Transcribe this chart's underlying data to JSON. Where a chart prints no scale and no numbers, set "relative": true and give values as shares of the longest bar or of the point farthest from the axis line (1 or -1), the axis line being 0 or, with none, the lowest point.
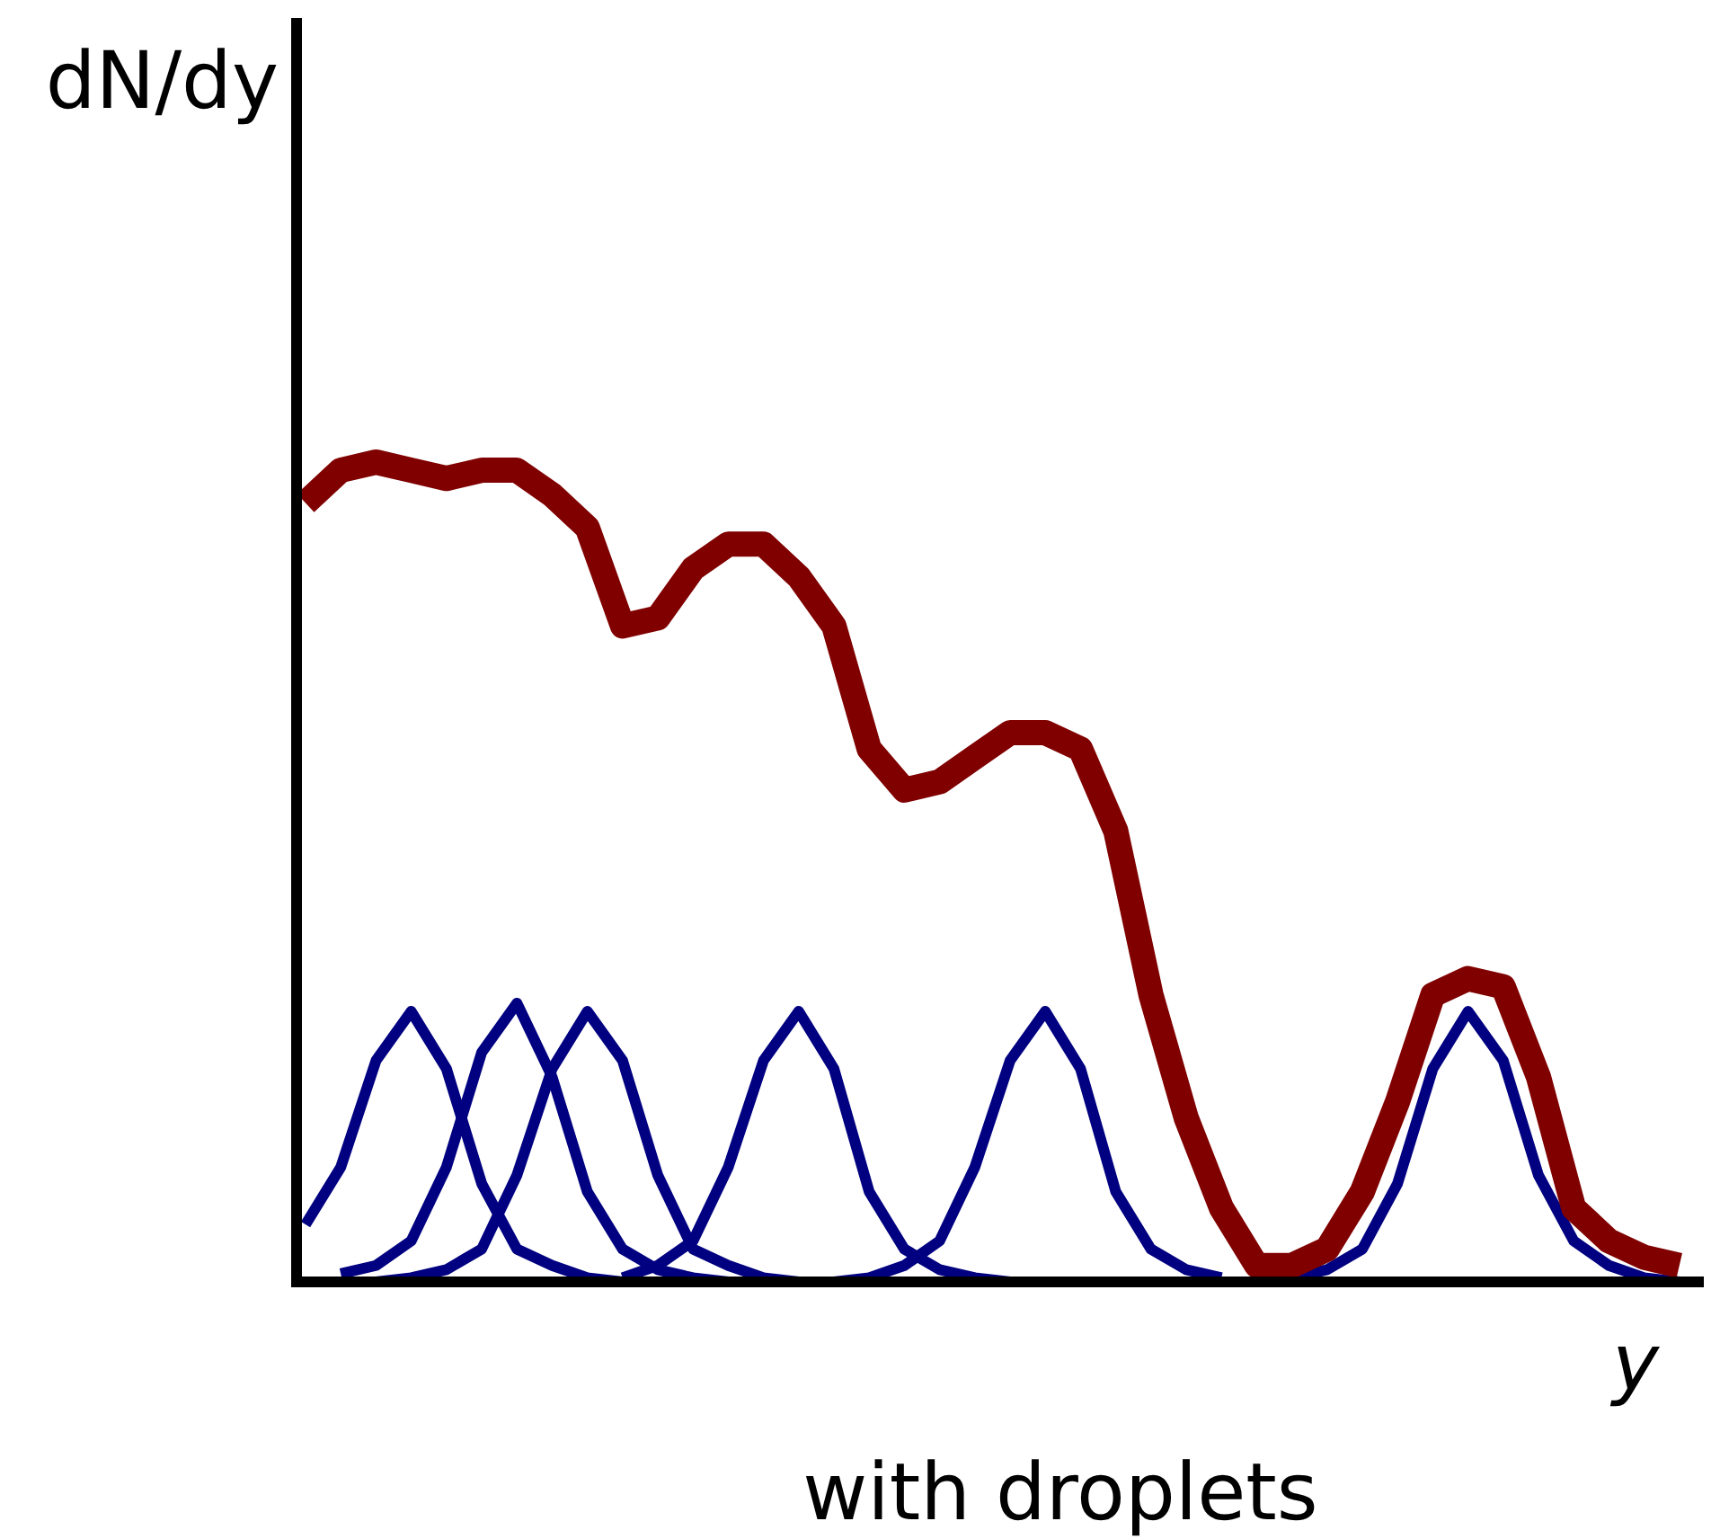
{
  "chart_data": {
    "type": "line",
    "relative": true,
    "xlabel": "y",
    "ylabel": "dN/dy",
    "annotations": [
      "with droplets"
    ],
    "categories": [
      null,
      null,
      null,
      null,
      null,
      null,
      null,
      null,
      null,
      null,
      null,
      null,
      null,
      null,
      null,
      null,
      null,
      null,
      null,
      null,
      null,
      null,
      null,
      null,
      null,
      null,
      null,
      null,
      null,
      null,
      null,
      null,
      null,
      null,
      null,
      null,
      null,
      null,
      null,
      null
    ],
    "series": [
      {
        "color": "#800000",
        "values": [
          0.95,
          0.99,
          1,
          0.99,
          0.98,
          0.99,
          0.99,
          0.96,
          0.92,
          0.8,
          0.81,
          0.87,
          0.9,
          0.9,
          0.86,
          0.8,
          0.65,
          0.6,
          0.61,
          0.64,
          0.67,
          0.67,
          0.65,
          0.55,
          0.35,
          0.2,
          0.09,
          0.02,
          0.02,
          0.04,
          0.11,
          0.22,
          0.35,
          0.37,
          0.36,
          0.25,
          0.09,
          0.05,
          0.03,
          0.02
        ]
      },
      {
        "color": "#000080",
        "values": [
          0.07,
          0.14,
          0.27,
          0.33,
          0.26,
          0.12,
          0.04,
          0.02,
          0.005,
          0,
          null,
          null,
          null,
          null,
          null,
          null,
          null,
          null,
          null,
          null,
          null,
          null,
          null,
          null,
          null,
          null,
          null,
          null,
          null,
          null,
          null,
          null,
          null,
          null,
          null,
          null,
          null,
          null,
          null,
          null
        ]
      },
      {
        "color": "#000080",
        "values": [
          null,
          0.01,
          0.02,
          0.05,
          0.14,
          0.28,
          0.34,
          0.25,
          0.11,
          0.04,
          0.015,
          0.005,
          0,
          null,
          null,
          null,
          null,
          null,
          null,
          null,
          null,
          null,
          null,
          null,
          null,
          null,
          null,
          null,
          null,
          null,
          null,
          null,
          null,
          null,
          null,
          null,
          null,
          null,
          null,
          null
        ]
      },
      {
        "color": "#000080",
        "values": [
          null,
          null,
          0,
          0.005,
          0.015,
          0.04,
          0.13,
          0.26,
          0.33,
          0.27,
          0.13,
          0.04,
          0.02,
          0.005,
          0,
          null,
          null,
          null,
          null,
          null,
          null,
          null,
          null,
          null,
          null,
          null,
          null,
          null,
          null,
          null,
          null,
          null,
          null,
          null,
          null,
          null,
          null,
          null,
          null,
          null
        ]
      },
      {
        "color": "#000080",
        "values": [
          null,
          null,
          null,
          null,
          null,
          null,
          null,
          null,
          null,
          0.005,
          0.02,
          0.05,
          0.14,
          0.27,
          0.33,
          0.26,
          0.11,
          0.04,
          0.015,
          0.005,
          0,
          null,
          null,
          null,
          null,
          null,
          null,
          null,
          null,
          null,
          null,
          null,
          null,
          null,
          null,
          null,
          null,
          null,
          null,
          null
        ]
      },
      {
        "color": "#000080",
        "values": [
          null,
          null,
          null,
          null,
          null,
          null,
          null,
          null,
          null,
          null,
          null,
          null,
          null,
          null,
          null,
          0,
          0.005,
          0.02,
          0.05,
          0.14,
          0.27,
          0.33,
          0.26,
          0.11,
          0.04,
          0.015,
          0.005,
          null,
          null,
          null,
          null,
          null,
          null,
          null,
          null,
          null,
          null,
          null,
          null,
          null
        ]
      },
      {
        "color": "#000080",
        "values": [
          null,
          null,
          null,
          null,
          null,
          null,
          null,
          null,
          null,
          null,
          null,
          null,
          null,
          null,
          null,
          null,
          null,
          null,
          null,
          null,
          null,
          null,
          null,
          null,
          null,
          null,
          null,
          null,
          0.005,
          0.015,
          0.04,
          0.12,
          0.26,
          0.33,
          0.27,
          0.13,
          0.05,
          0.02,
          0.005,
          0
        ]
      }
    ]
  }
}
